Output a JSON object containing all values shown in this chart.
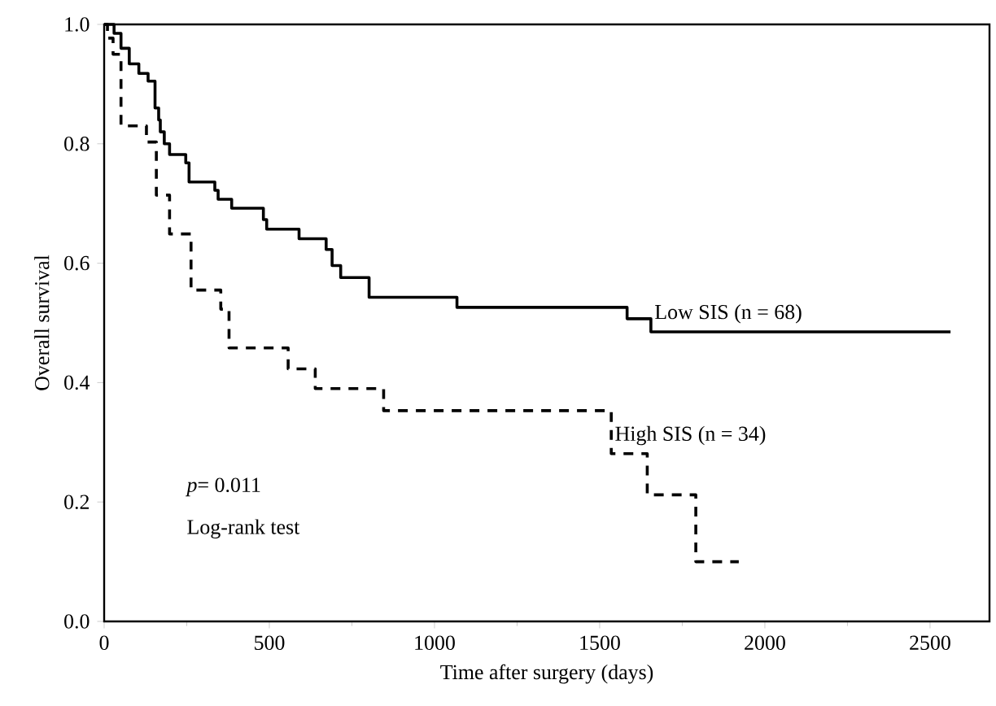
{
  "chart_data": {
    "type": "step",
    "xlabel": "Time after surgery (days)",
    "ylabel": "Overall survival",
    "xlim": [
      0,
      2680
    ],
    "ylim": [
      0,
      1
    ],
    "xticks": [
      0,
      500,
      1000,
      1500,
      2000,
      2500
    ],
    "yticks": [
      {
        "value": 0,
        "label": "0.0"
      },
      {
        "value": 0.2,
        "label": "0.2"
      },
      {
        "value": 0.4,
        "label": "0.4"
      },
      {
        "value": 0.6,
        "label": "0.6"
      },
      {
        "value": 0.8,
        "label": "0.8"
      },
      {
        "value": 1,
        "label": "1.0"
      }
    ],
    "grid": false,
    "legend": false,
    "marker": "none",
    "series": [
      {
        "name": "Low SIS (n = 68)",
        "color": "#000000",
        "line_style": "solid",
        "x": [
          0,
          30,
          51,
          76,
          105,
          133,
          154,
          165,
          170,
          182,
          198,
          247,
          257,
          335,
          345,
          386,
          482,
          492,
          590,
          672,
          690,
          716,
          802,
          1068,
          1583,
          1655,
          2562
        ],
        "values": [
          1.0,
          0.985,
          0.96,
          0.934,
          0.918,
          0.905,
          0.86,
          0.84,
          0.82,
          0.8,
          0.782,
          0.768,
          0.736,
          0.722,
          0.707,
          0.692,
          0.673,
          0.657,
          0.641,
          0.623,
          0.596,
          0.576,
          0.543,
          0.526,
          0.507,
          0.485,
          0.485
        ]
      },
      {
        "name": "High SIS (n = 34)",
        "color": "#000000",
        "line_style": "dashed",
        "x": [
          0,
          10,
          27,
          51,
          128,
          158,
          198,
          263,
          353,
          378,
          557,
          639,
          846,
          1535,
          1644,
          1791,
          1921
        ],
        "values": [
          1.0,
          0.977,
          0.95,
          0.83,
          0.803,
          0.714,
          0.649,
          0.555,
          0.523,
          0.458,
          0.423,
          0.39,
          0.353,
          0.281,
          0.212,
          0.1,
          0.1
        ]
      }
    ],
    "annotations": [
      "*p*= 0.011",
      "Log-rank test"
    ]
  }
}
